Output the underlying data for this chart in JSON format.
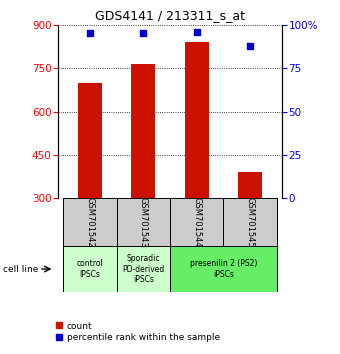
{
  "title": "GDS4141 / 213311_s_at",
  "samples": [
    "GSM701542",
    "GSM701543",
    "GSM701544",
    "GSM701545"
  ],
  "counts": [
    700,
    765,
    840,
    390
  ],
  "percentiles": [
    95,
    95,
    96,
    88
  ],
  "ylim_left": [
    300,
    900
  ],
  "ylim_right": [
    0,
    100
  ],
  "yticks_left": [
    300,
    450,
    600,
    750,
    900
  ],
  "yticks_right": [
    0,
    25,
    50,
    75,
    100
  ],
  "bar_color": "#cc1100",
  "dot_color": "#0000cc",
  "bar_width": 0.45,
  "cell_line_label": "cell line",
  "legend_count_label": "count",
  "legend_pct_label": "percentile rank within the sample",
  "sample_box_color": "#cccccc",
  "x_positions": [
    0,
    1,
    2,
    3
  ],
  "groups_def": [
    [
      -0.5,
      0.5,
      "control\nIPSCs",
      "#ccffcc"
    ],
    [
      0.5,
      1.5,
      "Sporadic\nPD-derived\niPSCs",
      "#ccffcc"
    ],
    [
      1.5,
      3.5,
      "presenilin 2 (PS2)\niPSCs",
      "#66ee66"
    ]
  ]
}
